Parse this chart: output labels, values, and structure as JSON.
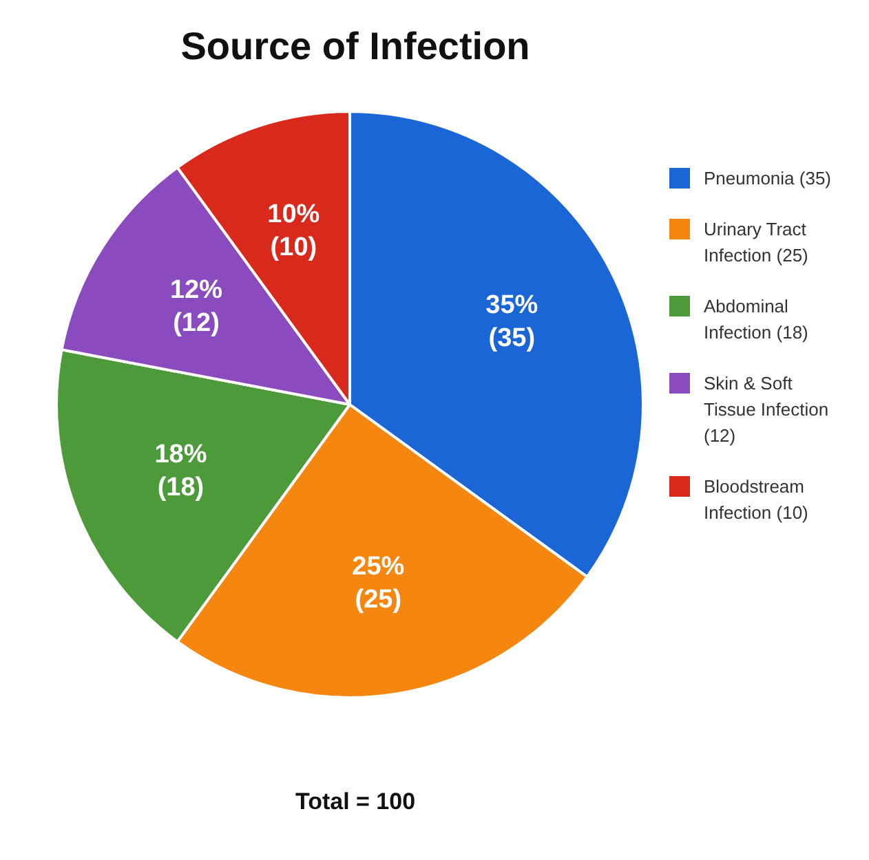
{
  "chart_data": {
    "type": "pie",
    "title": "Source of Infection",
    "categories": [
      "Pneumonia (35)",
      "Urinary Tract Infection (25)",
      "Abdominal Infection (18)",
      "Skin & Soft Tissue Infection (12)",
      "Bloodstream Infection (10)"
    ],
    "values": [
      35,
      25,
      18,
      12,
      10
    ],
    "colors": [
      "#1a66d6",
      "#f5860f",
      "#4c9a3a",
      "#8a4bbf",
      "#d9291c"
    ],
    "value_labels": [
      "35% (35)",
      "25% (25)",
      "18% (18)",
      "12% (12)",
      "10% (10)"
    ],
    "legend": "right",
    "annotations": [
      "Total = 100"
    ]
  }
}
